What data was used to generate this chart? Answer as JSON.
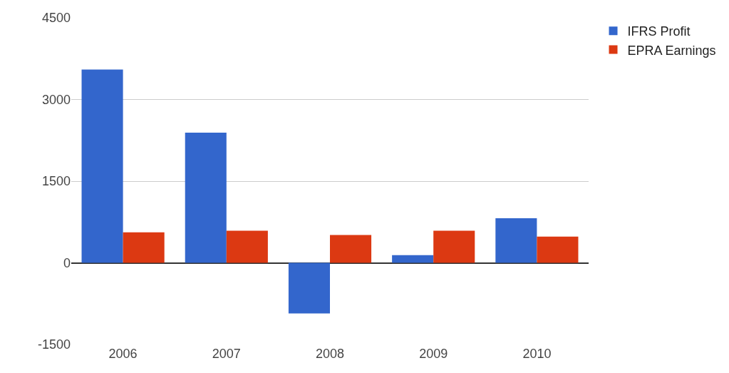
{
  "chart_data": {
    "type": "bar",
    "categories": [
      "2006",
      "2007",
      "2008",
      "2009",
      "2010"
    ],
    "series": [
      {
        "name": "IFRS Profit",
        "color": "#3366cc",
        "values": [
          3550,
          2390,
          -930,
          140,
          820
        ]
      },
      {
        "name": "EPRA Earnings",
        "color": "#dc3912",
        "values": [
          560,
          590,
          510,
          590,
          480
        ]
      }
    ],
    "ylim": [
      -1500,
      4500
    ],
    "yticks": [
      -1500,
      0,
      1500,
      3000,
      4500
    ],
    "grid": "y",
    "legend": "top right"
  }
}
